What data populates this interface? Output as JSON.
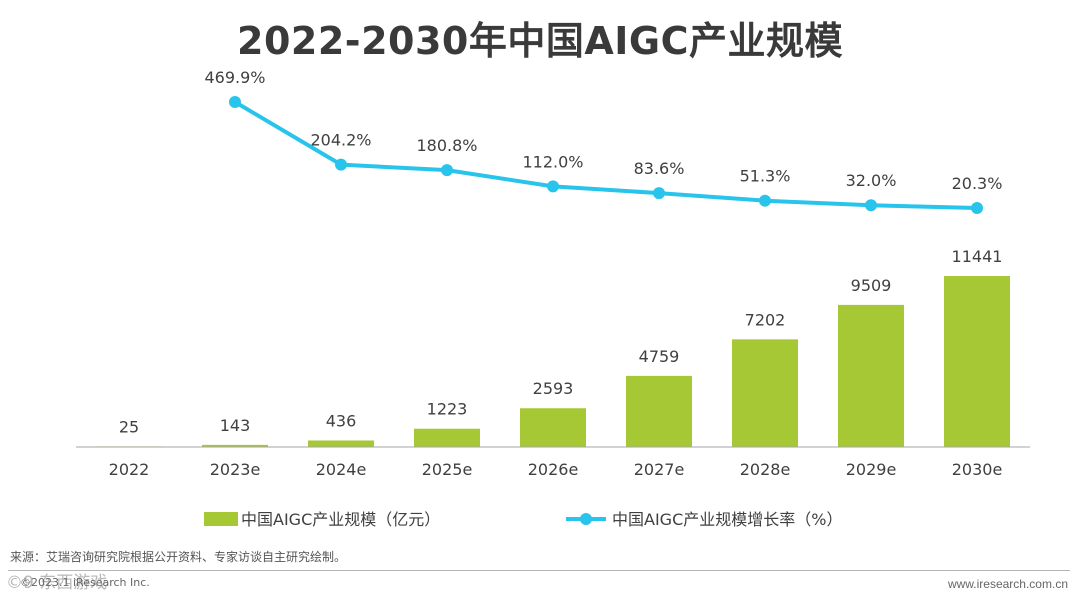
{
  "page": {
    "title": "2022-2030年中国AIGC产业规模",
    "source": "来源：艾瑞咨询研究院根据公开资料、专家访谈自主研究绘制。",
    "copyright": "©2023.1 iResearch Inc.",
    "website": "www.iresearch.com.cn",
    "watermark": "©9 东西游戏"
  },
  "colors": {
    "bar": "#A5C834",
    "line": "#29C4EB",
    "title": "#3a3a3a",
    "text": "#404040",
    "axis": "#a6a6a6"
  },
  "chart_data": {
    "type": "bar+line",
    "title": "2022-2030年中国AIGC产业规模",
    "categories": [
      "2022",
      "2023e",
      "2024e",
      "2025e",
      "2026e",
      "2027e",
      "2028e",
      "2029e",
      "2030e"
    ],
    "series": [
      {
        "name": "中国AIGC产业规模（亿元）",
        "type": "bar",
        "values": [
          25,
          143,
          436,
          1223,
          2593,
          4759,
          7202,
          9509,
          11441
        ],
        "labels": [
          "25",
          "143",
          "436",
          "1223",
          "2593",
          "4759",
          "7202",
          "9509",
          "11441"
        ]
      },
      {
        "name": "中国AIGC产业规模增长率（%）",
        "type": "line",
        "values": [
          null,
          469.9,
          204.2,
          180.8,
          112.0,
          83.6,
          51.3,
          32.0,
          20.3
        ],
        "labels": [
          "",
          "469.9%",
          "204.2%",
          "180.8%",
          "112.0%",
          "83.6%",
          "51.3%",
          "32.0%",
          "20.3%"
        ]
      }
    ],
    "legend": [
      "中国AIGC产业规模（亿元）",
      "中国AIGC产业规模增长率（%）"
    ],
    "legend_position": "bottom"
  }
}
